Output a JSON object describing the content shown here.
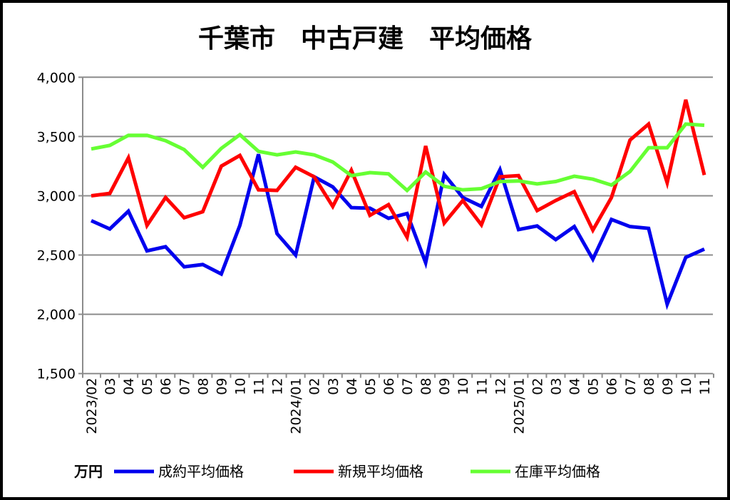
{
  "chart_data": {
    "type": "line",
    "title": "千葉市　中古戸建　平均価格",
    "unit_label": "万円",
    "ylim": [
      1500,
      4000
    ],
    "yticks": [
      1500,
      2000,
      2500,
      3000,
      3500,
      4000
    ],
    "ytick_labels": [
      "1,500",
      "2,000",
      "2,500",
      "3,000",
      "3,500",
      "4,000"
    ],
    "grid": true,
    "legend_position": "bottom",
    "categories": [
      "2023/02",
      "03",
      "04",
      "05",
      "06",
      "07",
      "08",
      "09",
      "10",
      "11",
      "12",
      "2024/01",
      "02",
      "03",
      "04",
      "05",
      "06",
      "07",
      "08",
      "09",
      "10",
      "11",
      "12",
      "2025/01",
      "02",
      "03",
      "04",
      "05",
      "06",
      "07",
      "08",
      "09",
      "10",
      "11"
    ],
    "series": [
      {
        "name": "成約平均価格",
        "color": "#0000ee",
        "values": [
          2790,
          2720,
          2870,
          2535,
          2570,
          2400,
          2420,
          2340,
          2750,
          3350,
          2680,
          2500,
          3160,
          3075,
          2900,
          2895,
          2810,
          2850,
          2435,
          3180,
          2985,
          2910,
          3220,
          2715,
          2745,
          2630,
          2740,
          2465,
          2800,
          2740,
          2725,
          2085,
          2480,
          2550
        ]
      },
      {
        "name": "新規平均価格",
        "color": "#ff0000",
        "values": [
          3000,
          3020,
          3320,
          2750,
          2985,
          2815,
          2865,
          3250,
          3340,
          3050,
          3045,
          3240,
          3160,
          2910,
          3215,
          2835,
          2925,
          2650,
          3420,
          2770,
          2960,
          2755,
          3160,
          3170,
          2875,
          2960,
          3035,
          2710,
          2985,
          3470,
          3605,
          3110,
          3810,
          3175
        ]
      },
      {
        "name": "在庫平均価格",
        "color": "#66ff33",
        "values": [
          3395,
          3425,
          3510,
          3510,
          3465,
          3390,
          3240,
          3400,
          3515,
          3375,
          3345,
          3370,
          3345,
          3285,
          3170,
          3195,
          3185,
          3045,
          3200,
          3080,
          3050,
          3060,
          3120,
          3125,
          3100,
          3120,
          3165,
          3140,
          3090,
          3205,
          3405,
          3405,
          3605,
          3595
        ]
      }
    ]
  }
}
